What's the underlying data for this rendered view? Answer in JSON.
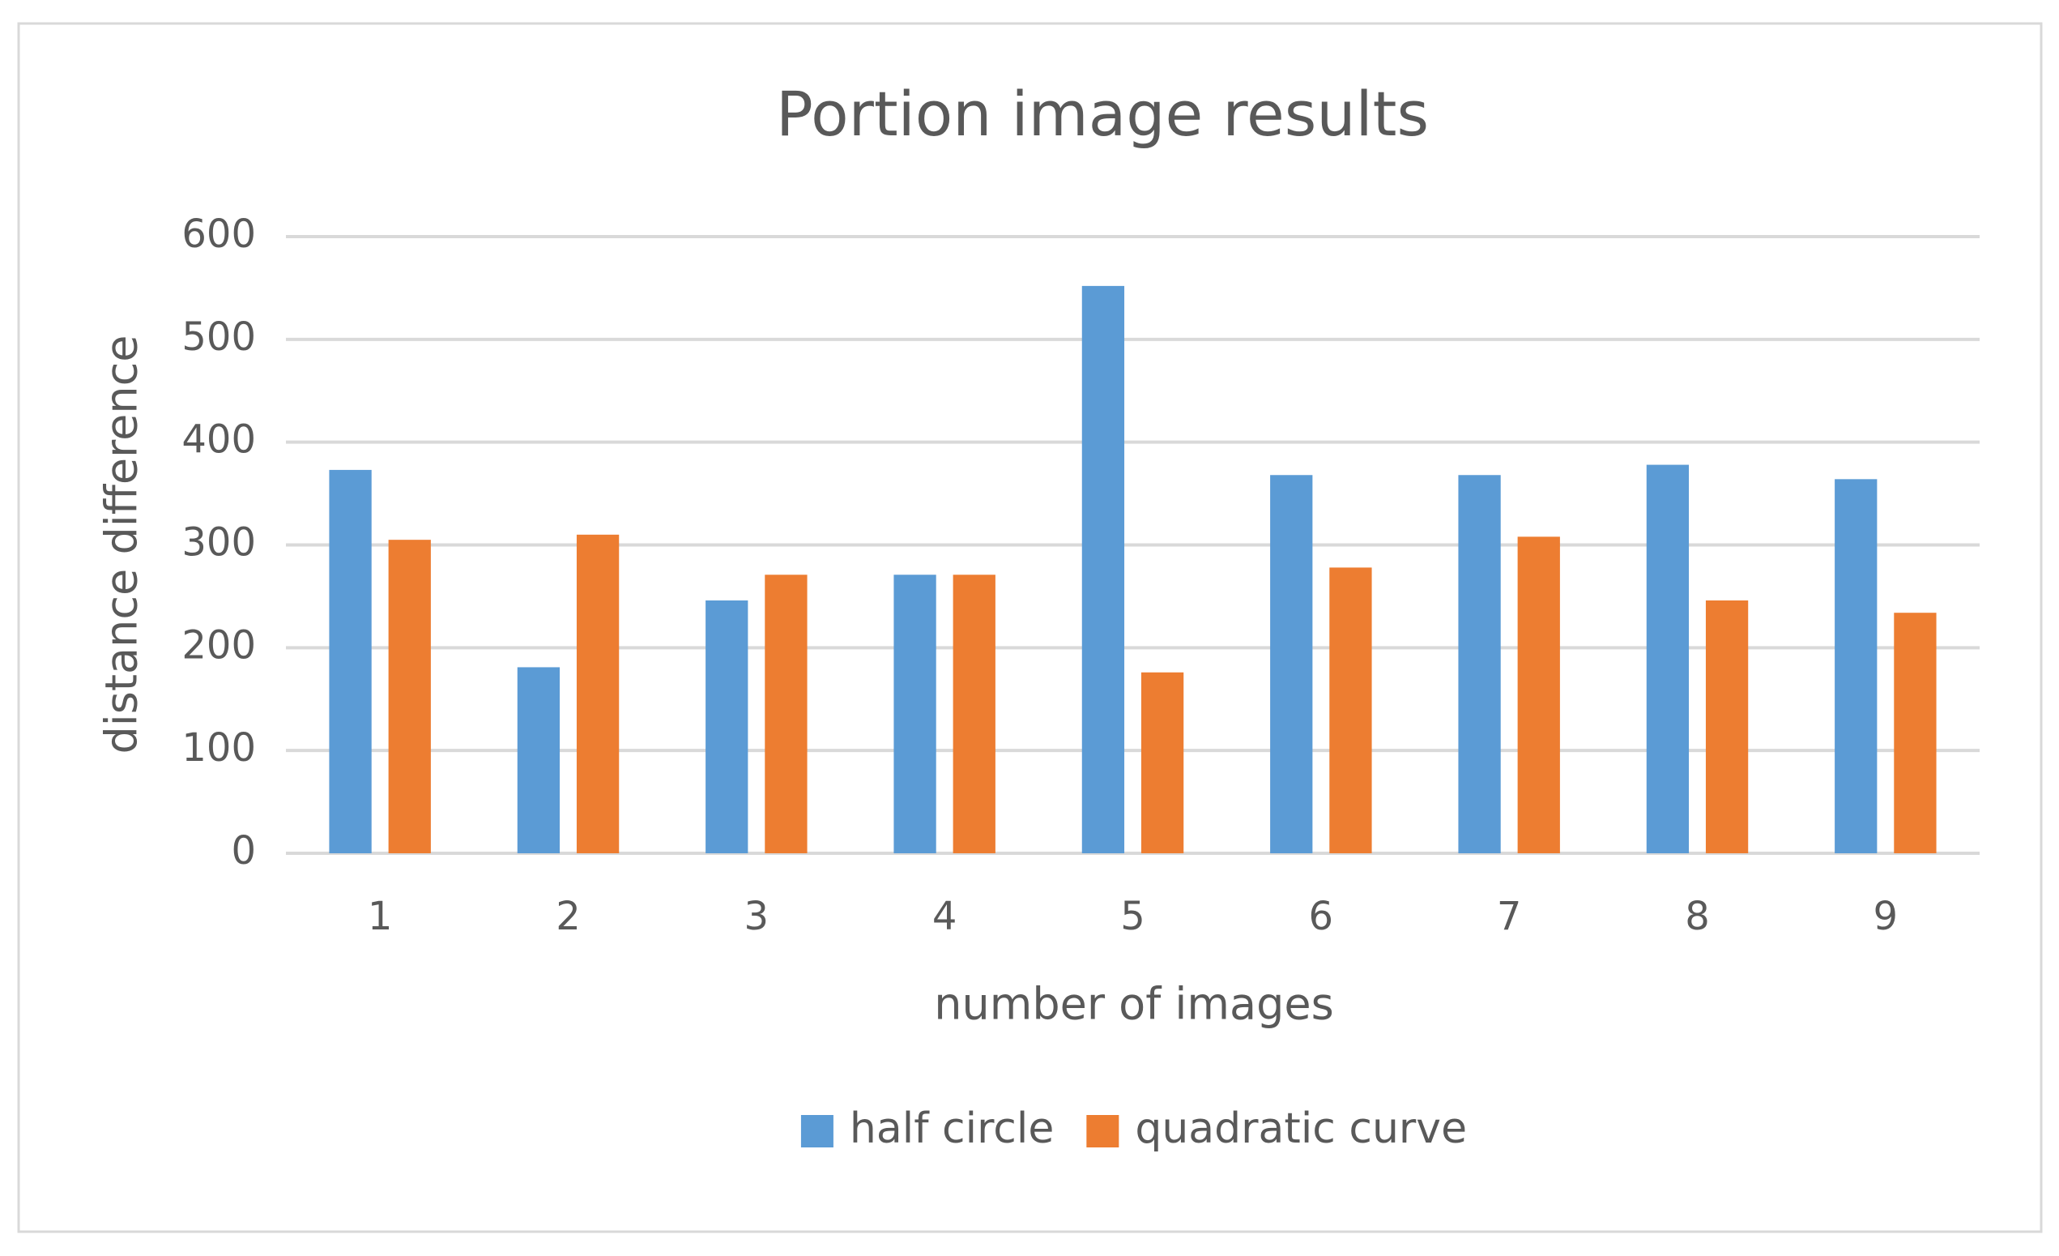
{
  "chart_data": {
    "type": "bar",
    "title": "Portion image results",
    "x_label": "number of images",
    "y_label": "distance difference",
    "categories": [
      "1",
      "2",
      "3",
      "4",
      "5",
      "6",
      "7",
      "8",
      "9"
    ],
    "series": [
      {
        "name": "half circle",
        "color": "#5b9bd5",
        "values": [
          373,
          181,
          246,
          271,
          552,
          368,
          368,
          378,
          364
        ]
      },
      {
        "name": "quadratic curve",
        "color": "#ed7d31",
        "values": [
          305,
          310,
          271,
          271,
          176,
          278,
          308,
          246,
          234
        ]
      }
    ],
    "ylim": [
      0,
      600
    ],
    "yticks": [
      0,
      100,
      200,
      300,
      400,
      500,
      600
    ],
    "grid": true,
    "legend": "bottom"
  }
}
